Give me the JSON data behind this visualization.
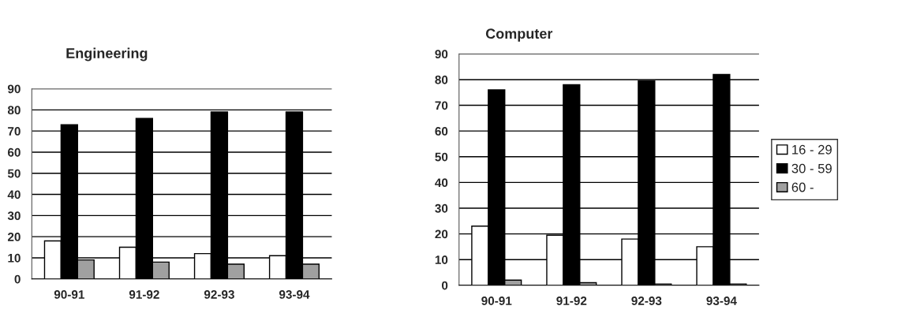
{
  "chart_data": [
    {
      "type": "bar",
      "title": "Engineering",
      "categories": [
        "90-91",
        "91-92",
        "92-93",
        "93-94"
      ],
      "ylim": [
        0,
        90
      ],
      "yticks": [
        0,
        10,
        20,
        30,
        40,
        50,
        60,
        70,
        80,
        90
      ],
      "grid": "y",
      "legend": false,
      "series": [
        {
          "color": "#ffffff",
          "values": [
            18,
            15,
            12,
            11
          ]
        },
        {
          "color": "#000000",
          "values": [
            73,
            76,
            79,
            79
          ]
        },
        {
          "color": "#a0a0a0",
          "values": [
            9,
            8,
            7,
            7
          ]
        }
      ]
    },
    {
      "type": "bar",
      "title": "Computer",
      "categories": [
        "90-91",
        "91-92",
        "92-93",
        "93-94"
      ],
      "ylim": [
        0,
        90
      ],
      "yticks": [
        0,
        10,
        20,
        30,
        40,
        50,
        60,
        70,
        80,
        90
      ],
      "grid": "y",
      "legend": "right",
      "series": [
        {
          "name": "16 - 29",
          "color": "#ffffff",
          "values": [
            23,
            19.5,
            18,
            15
          ]
        },
        {
          "name": "30 - 59",
          "color": "#000000",
          "values": [
            76,
            78,
            79.5,
            82
          ]
        },
        {
          "name": "60 -",
          "color": "#a0a0a0",
          "values": [
            2,
            1,
            0.5,
            0.5
          ]
        }
      ]
    }
  ]
}
